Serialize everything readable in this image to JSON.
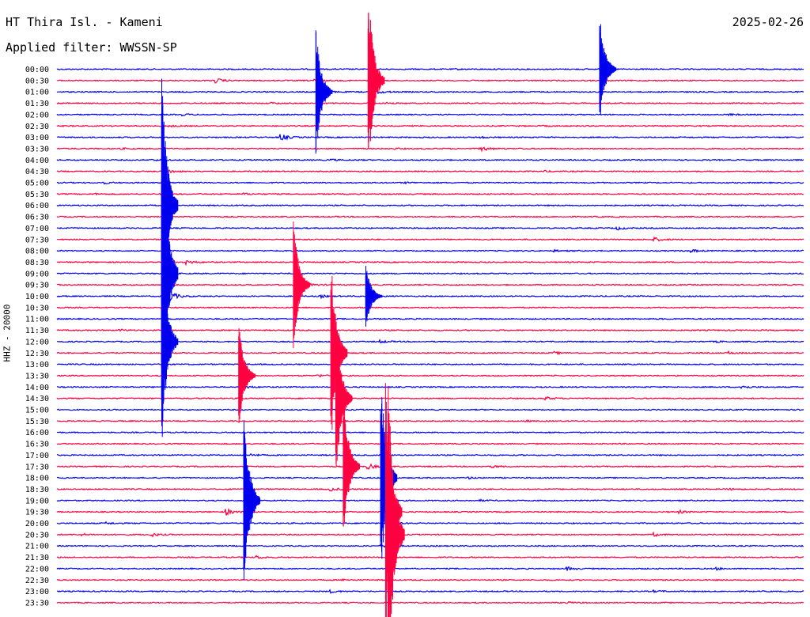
{
  "header": {
    "station": "HT Thira Isl. - Kameni",
    "filter_label": "Applied filter: WWSSN-SP",
    "date": "2025-02-26",
    "channel_label": "HHZ - 20000"
  },
  "chart_data": {
    "type": "line",
    "title": "HT Thira Isl. - Kameni",
    "subtitle": "Applied filter: WWSSN-SP",
    "ylabel": "HHZ - 20000",
    "xlabel": "",
    "grid": false,
    "legend": "none",
    "colors": {
      "odd_rows": "#0000ee",
      "even_rows": "#ff0040"
    },
    "x_range_minutes": [
      0,
      30
    ],
    "row_labels": [
      "00:00",
      "00:30",
      "01:00",
      "01:30",
      "02:00",
      "02:30",
      "03:00",
      "03:30",
      "04:00",
      "04:30",
      "05:00",
      "05:30",
      "06:00",
      "06:30",
      "07:00",
      "07:30",
      "08:00",
      "08:30",
      "09:00",
      "09:30",
      "10:00",
      "10:30",
      "11:00",
      "11:30",
      "12:00",
      "12:30",
      "13:00",
      "13:30",
      "14:00",
      "14:30",
      "15:00",
      "15:30",
      "16:00",
      "16:30",
      "17:00",
      "17:30",
      "18:00",
      "18:30",
      "19:00",
      "19:30",
      "20:00",
      "20:30",
      "21:00",
      "21:30",
      "22:00",
      "22:30",
      "23:00",
      "23:30"
    ],
    "events": [
      {
        "row": 0,
        "minute": 16.0,
        "amplitude": 0.4
      },
      {
        "row": 0,
        "minute": 22.0,
        "amplitude": 0.6
      },
      {
        "row": 1,
        "minute": 6.4,
        "amplitude": 2.5
      },
      {
        "row": 1,
        "minute": 10.2,
        "amplitude": 1.8
      },
      {
        "row": 2,
        "minute": 10.5,
        "amplitude": 4.0
      },
      {
        "row": 2,
        "minute": 12.6,
        "amplitude": 6.0
      },
      {
        "row": 3,
        "minute": 8.6,
        "amplitude": 0.8
      },
      {
        "row": 3,
        "minute": 13.3,
        "amplitude": 0.8
      },
      {
        "row": 4,
        "minute": 5.0,
        "amplitude": 1.0
      },
      {
        "row": 4,
        "minute": 27.0,
        "amplitude": 0.8
      },
      {
        "row": 5,
        "minute": 4.5,
        "amplitude": 1.0
      },
      {
        "row": 5,
        "minute": 19.5,
        "amplitude": 0.6
      },
      {
        "row": 6,
        "minute": 9.0,
        "amplitude": 4.0
      },
      {
        "row": 6,
        "minute": 17.0,
        "amplitude": 1.0
      },
      {
        "row": 7,
        "minute": 2.6,
        "amplitude": 0.6
      },
      {
        "row": 7,
        "minute": 13.5,
        "amplitude": 0.8
      },
      {
        "row": 7,
        "minute": 17.0,
        "amplitude": 3.5
      },
      {
        "row": 8,
        "minute": 3.8,
        "amplitude": 0.8
      },
      {
        "row": 8,
        "minute": 11.0,
        "amplitude": 1.0
      },
      {
        "row": 9,
        "minute": 4.5,
        "amplitude": 2.0
      },
      {
        "row": 9,
        "minute": 19.5,
        "amplitude": 0.8
      },
      {
        "row": 10,
        "minute": 1.8,
        "amplitude": 1.5
      },
      {
        "row": 10,
        "minute": 14.0,
        "amplitude": 0.6
      },
      {
        "row": 11,
        "minute": 1.5,
        "amplitude": 0.8
      },
      {
        "row": 11,
        "minute": 7.5,
        "amplitude": 1.0
      },
      {
        "row": 14,
        "minute": 22.5,
        "amplitude": 2.0
      },
      {
        "row": 15,
        "minute": 24.0,
        "amplitude": 2.5
      },
      {
        "row": 16,
        "minute": 25.5,
        "amplitude": 1.5
      },
      {
        "row": 16,
        "minute": 20.0,
        "amplitude": 0.8
      },
      {
        "row": 17,
        "minute": 5.2,
        "amplitude": 2.5
      },
      {
        "row": 19,
        "minute": 10.0,
        "amplitude": 2.5
      },
      {
        "row": 20,
        "minute": 4.5,
        "amplitude": 7.0
      },
      {
        "row": 20,
        "minute": 10.6,
        "amplitude": 1.5
      },
      {
        "row": 23,
        "minute": 2.5,
        "amplitude": 1.2
      },
      {
        "row": 24,
        "minute": 13.0,
        "amplitude": 1.5
      },
      {
        "row": 24,
        "minute": 26.5,
        "amplitude": 0.8
      },
      {
        "row": 25,
        "minute": 20.0,
        "amplitude": 1.2
      },
      {
        "row": 25,
        "minute": 27.0,
        "amplitude": 1.5
      },
      {
        "row": 27,
        "minute": 10.5,
        "amplitude": 1.5
      },
      {
        "row": 28,
        "minute": 7.5,
        "amplitude": 2.0
      },
      {
        "row": 28,
        "minute": 27.5,
        "amplitude": 2.5
      },
      {
        "row": 29,
        "minute": 19.6,
        "amplitude": 2.0
      },
      {
        "row": 31,
        "minute": 18.8,
        "amplitude": 0.8
      },
      {
        "row": 34,
        "minute": 7.8,
        "amplitude": 1.5
      },
      {
        "row": 35,
        "minute": 12.5,
        "amplitude": 3.5
      },
      {
        "row": 35,
        "minute": 17.5,
        "amplitude": 1.5
      },
      {
        "row": 36,
        "minute": 16.5,
        "amplitude": 1.0
      },
      {
        "row": 37,
        "minute": 11.0,
        "amplitude": 2.0
      },
      {
        "row": 37,
        "minute": 27.0,
        "amplitude": 1.0
      },
      {
        "row": 38,
        "minute": 17.0,
        "amplitude": 0.8
      },
      {
        "row": 39,
        "minute": 6.8,
        "amplitude": 4.0
      },
      {
        "row": 39,
        "minute": 25.0,
        "amplitude": 1.8
      },
      {
        "row": 40,
        "minute": 2.0,
        "amplitude": 1.0
      },
      {
        "row": 40,
        "minute": 13.5,
        "amplitude": 1.2
      },
      {
        "row": 41,
        "minute": 1.0,
        "amplitude": 1.0
      },
      {
        "row": 41,
        "minute": 3.8,
        "amplitude": 2.0
      },
      {
        "row": 41,
        "minute": 24.0,
        "amplitude": 1.8
      },
      {
        "row": 42,
        "minute": 13.0,
        "amplitude": 1.5
      },
      {
        "row": 43,
        "minute": 8.0,
        "amplitude": 2.0
      },
      {
        "row": 44,
        "minute": 20.5,
        "amplitude": 2.0
      },
      {
        "row": 44,
        "minute": 26.5,
        "amplitude": 1.2
      },
      {
        "row": 45,
        "minute": 11.5,
        "amplitude": 1.0
      },
      {
        "row": 46,
        "minute": 11.0,
        "amplitude": 1.5
      },
      {
        "row": 46,
        "minute": 24.0,
        "amplitude": 1.0
      },
      {
        "row": 47,
        "minute": 20.5,
        "amplitude": 1.0
      }
    ],
    "large_events": [
      {
        "row": 12,
        "minute": 4.2,
        "amplitude": 25
      },
      {
        "row": 18,
        "minute": 4.2,
        "amplitude": 30
      },
      {
        "row": 24,
        "minute": 4.2,
        "amplitude": 20
      },
      {
        "row": 19,
        "minute": 9.5,
        "amplitude": 12
      },
      {
        "row": 2,
        "minute": 10.4,
        "amplitude": 12
      },
      {
        "row": 1,
        "minute": 12.5,
        "amplitude": 18
      },
      {
        "row": 25,
        "minute": 11.0,
        "amplitude": 18
      },
      {
        "row": 29,
        "minute": 11.2,
        "amplitude": 15
      },
      {
        "row": 35,
        "minute": 11.5,
        "amplitude": 14
      },
      {
        "row": 36,
        "minute": 13.0,
        "amplitude": 20
      },
      {
        "row": 39,
        "minute": 13.2,
        "amplitude": 25
      },
      {
        "row": 41,
        "minute": 13.3,
        "amplitude": 30
      },
      {
        "row": 38,
        "minute": 7.5,
        "amplitude": 18
      },
      {
        "row": 27,
        "minute": 7.3,
        "amplitude": 10
      },
      {
        "row": 20,
        "minute": 12.4,
        "amplitude": 6
      },
      {
        "row": 0,
        "minute": 21.8,
        "amplitude": 10
      }
    ]
  }
}
